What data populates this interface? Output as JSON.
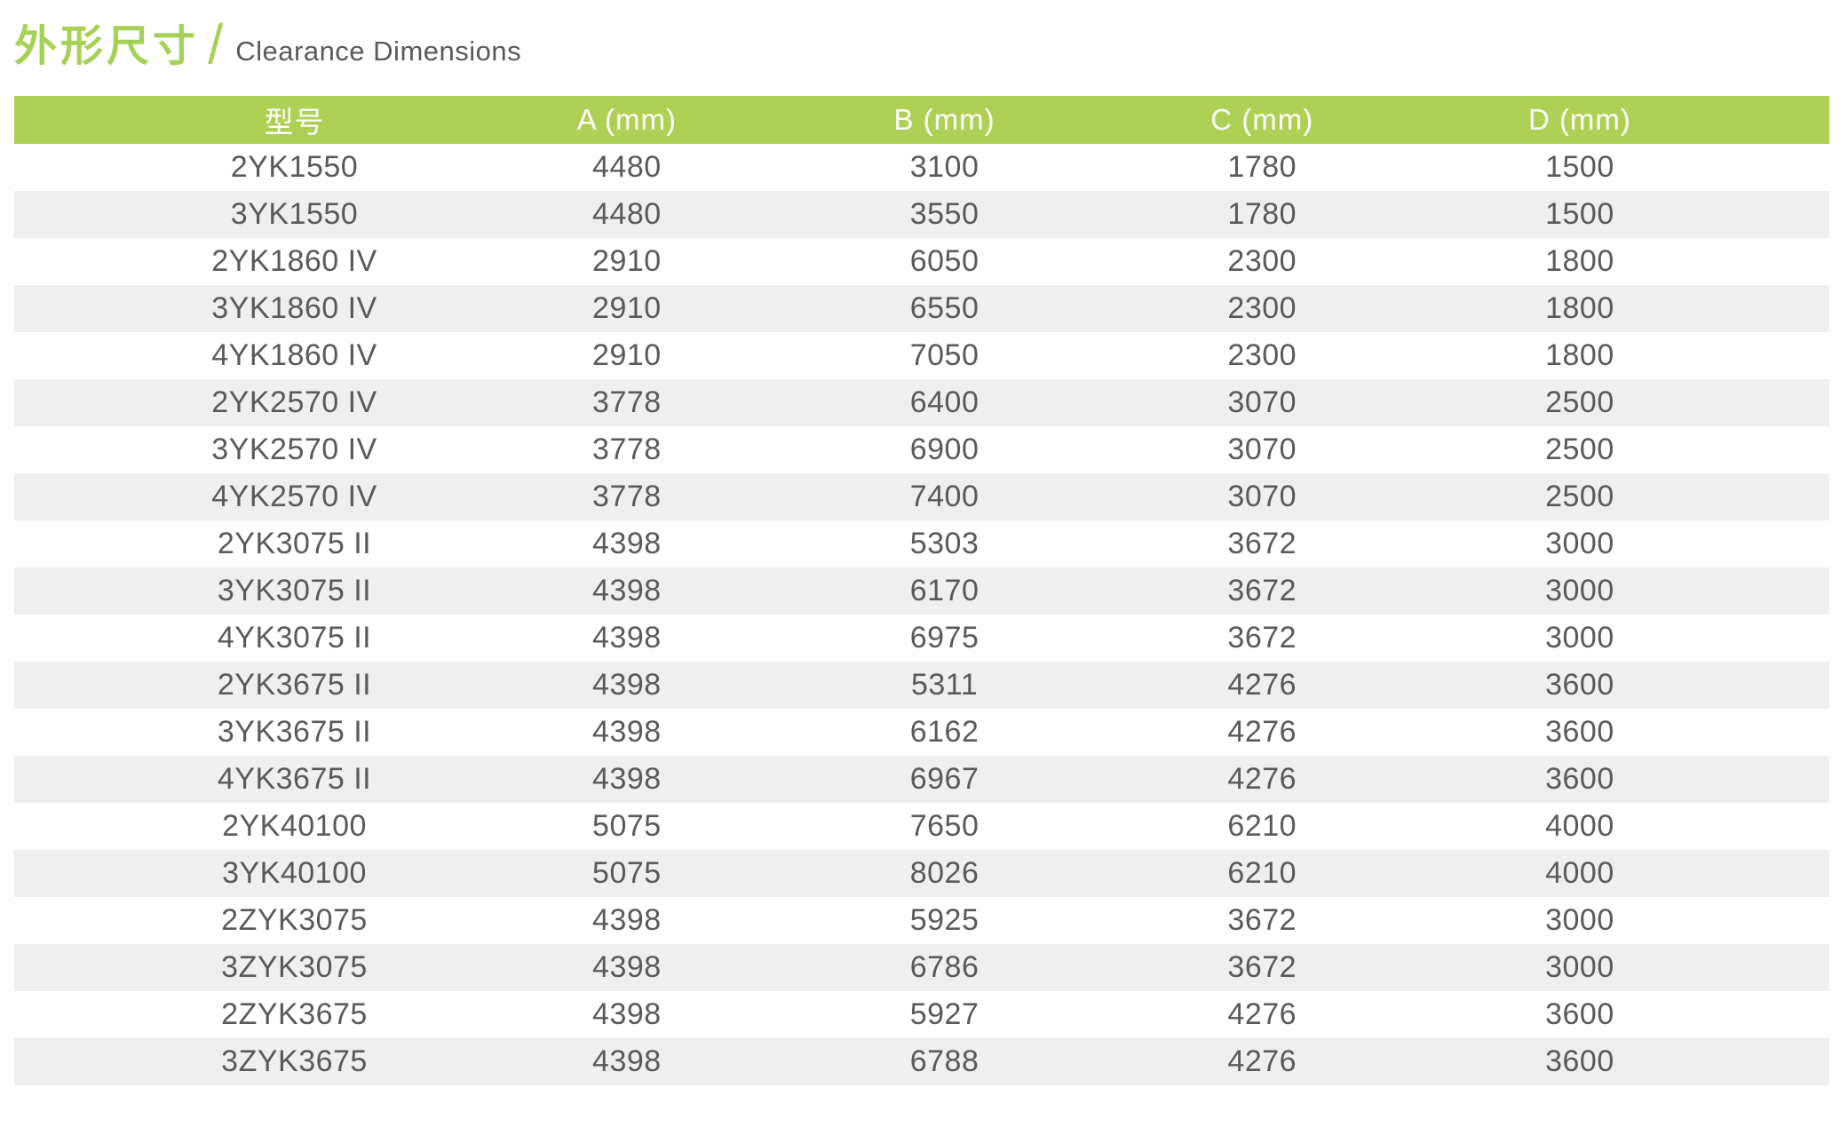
{
  "header": {
    "title_cn": "外形尺寸",
    "separator": "/",
    "title_en": "Clearance Dimensions"
  },
  "colors": {
    "brand_green": "#aed155",
    "title_green": "#a7d156",
    "header_text": "#ffffff",
    "row_stripe": "#efefef",
    "cell_text": "#595a5c"
  },
  "table": {
    "columns": [
      {
        "key": "model",
        "label": "型号"
      },
      {
        "key": "a",
        "label": "A (mm)"
      },
      {
        "key": "b",
        "label": "B (mm)"
      },
      {
        "key": "c",
        "label": "C (mm)"
      },
      {
        "key": "d",
        "label": "D (mm)"
      }
    ],
    "rows": [
      [
        "2YK1550",
        "4480",
        "3100",
        "1780",
        "1500"
      ],
      [
        "3YK1550",
        "4480",
        "3550",
        "1780",
        "1500"
      ],
      [
        "2YK1860 IV",
        "2910",
        "6050",
        "2300",
        "1800"
      ],
      [
        "3YK1860 IV",
        "2910",
        "6550",
        "2300",
        "1800"
      ],
      [
        "4YK1860 IV",
        "2910",
        "7050",
        "2300",
        "1800"
      ],
      [
        "2YK2570 IV",
        "3778",
        "6400",
        "3070",
        "2500"
      ],
      [
        "3YK2570 IV",
        "3778",
        "6900",
        "3070",
        "2500"
      ],
      [
        "4YK2570 IV",
        "3778",
        "7400",
        "3070",
        "2500"
      ],
      [
        "2YK3075 II",
        "4398",
        "5303",
        "3672",
        "3000"
      ],
      [
        "3YK3075 II",
        "4398",
        "6170",
        "3672",
        "3000"
      ],
      [
        "4YK3075 II",
        "4398",
        "6975",
        "3672",
        "3000"
      ],
      [
        "2YK3675 II",
        "4398",
        "5311",
        "4276",
        "3600"
      ],
      [
        "3YK3675 II",
        "4398",
        "6162",
        "4276",
        "3600"
      ],
      [
        "4YK3675 II",
        "4398",
        "6967",
        "4276",
        "3600"
      ],
      [
        "2YK40100",
        "5075",
        "7650",
        "6210",
        "4000"
      ],
      [
        "3YK40100",
        "5075",
        "8026",
        "6210",
        "4000"
      ],
      [
        "2ZYK3075",
        "4398",
        "5925",
        "3672",
        "3000"
      ],
      [
        "3ZYK3075",
        "4398",
        "6786",
        "3672",
        "3000"
      ],
      [
        "2ZYK3675",
        "4398",
        "5927",
        "4276",
        "3600"
      ],
      [
        "3ZYK3675",
        "4398",
        "6788",
        "4276",
        "3600"
      ]
    ]
  }
}
